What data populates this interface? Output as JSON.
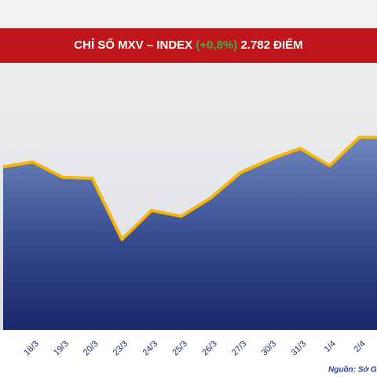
{
  "chart_data": {
    "type": "area",
    "title": "CHỈ SỐ MXV – INDEX",
    "title_change": "(+0,8%)",
    "title_value": "2.782 ĐIỂM",
    "source": "Nguồn: Sở G",
    "categories": [
      null,
      "18/3",
      "19/3",
      "20/3",
      "23/3",
      "24/3",
      "25/3",
      "26/3",
      "27/3",
      "30/3",
      "31/3",
      "1/4",
      "2/4",
      null
    ],
    "values": [
      2710,
      2719,
      2690,
      2688,
      2572,
      2627,
      2616,
      2651,
      2699,
      2724,
      2745,
      2712,
      2766,
      2766
    ],
    "ylim": [
      2400,
      2900
    ],
    "color": "#f5b50a",
    "title_color": "#c0161b",
    "change_color": "#3cb043"
  }
}
